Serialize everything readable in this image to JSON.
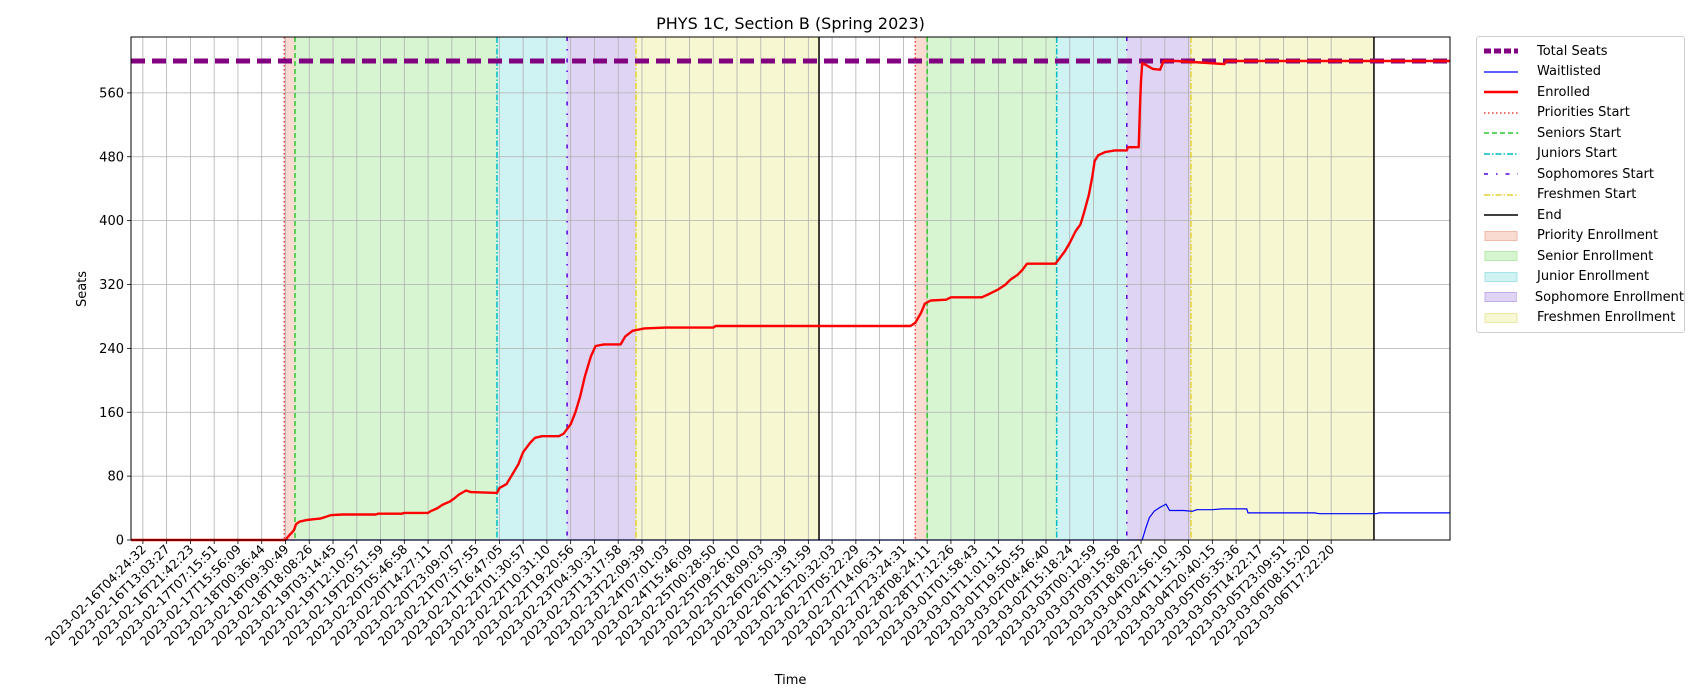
{
  "chart_data": {
    "type": "line",
    "title": "PHYS 1C, Section B (Spring 2023)",
    "xlabel": "Time",
    "ylabel": "Seats",
    "ylim": [
      0,
      630
    ],
    "yticks": [
      0,
      80,
      160,
      240,
      320,
      400,
      480,
      560
    ],
    "x_tick_labels": [
      "2023-02-16T04:24:32",
      "2023-02-16T13:03:27",
      "2023-02-16T21:42:23",
      "2023-02-17T07:15:51",
      "2023-02-17T15:56:09",
      "2023-02-18T00:36:44",
      "2023-02-18T09:30:49",
      "2023-02-18T18:08:26",
      "2023-02-19T03:14:45",
      "2023-02-19T12:10:57",
      "2023-02-19T20:51:59",
      "2023-02-20T05:46:58",
      "2023-02-20T14:27:11",
      "2023-02-20T23:09:07",
      "2023-02-21T07:57:55",
      "2023-02-21T16:47:05",
      "2023-02-22T01:30:57",
      "2023-02-22T10:31:10",
      "2023-02-22T19:20:56",
      "2023-02-23T04:30:32",
      "2023-02-23T13:17:58",
      "2023-02-23T22:09:39",
      "2023-02-24T07:01:03",
      "2023-02-24T15:46:09",
      "2023-02-25T00:28:50",
      "2023-02-25T09:26:10",
      "2023-02-25T18:09:03",
      "2023-02-26T02:50:39",
      "2023-02-26T11:51:59",
      "2023-02-26T20:32:03",
      "2023-02-27T05:22:29",
      "2023-02-27T14:06:31",
      "2023-02-27T23:24:31",
      "2023-02-28T08:24:11",
      "2023-02-28T17:12:26",
      "2023-03-01T01:58:43",
      "2023-03-01T11:01:11",
      "2023-03-01T19:50:55",
      "2023-03-02T04:46:40",
      "2023-03-02T15:18:24",
      "2023-03-03T00:12:59",
      "2023-03-03T09:15:58",
      "2023-03-03T18:08:27",
      "2023-03-04T02:56:10",
      "2023-03-04T11:51:30",
      "2023-03-04T20:40:15",
      "2023-03-05T05:35:36",
      "2023-03-05T14:22:17",
      "2023-03-05T23:09:51",
      "2023-03-06T08:15:20",
      "2023-03-06T17:22:20"
    ],
    "total_seats": 600,
    "phase_markers": [
      {
        "name": "Priorities Start",
        "x": 6.45
      },
      {
        "name": "Seniors Start",
        "x": 6.9
      },
      {
        "name": "Juniors Start",
        "x": 15.4
      },
      {
        "name": "Sophomores Start",
        "x": 18.35
      },
      {
        "name": "Freshmen Start",
        "x": 21.25
      },
      {
        "name": "End",
        "x": 28.95
      },
      {
        "name": "Priorities Start",
        "x": 33.0
      },
      {
        "name": "Seniors Start",
        "x": 33.5
      },
      {
        "name": "Juniors Start",
        "x": 38.95
      },
      {
        "name": "Sophomores Start",
        "x": 41.9
      },
      {
        "name": "Freshmen Start",
        "x": 44.6
      },
      {
        "name": "End",
        "x": 52.3
      }
    ],
    "phase_regions": [
      {
        "name": "Priority Enrollment",
        "x0": 6.45,
        "x1": 6.9
      },
      {
        "name": "Senior Enrollment",
        "x0": 6.9,
        "x1": 15.4
      },
      {
        "name": "Junior Enrollment",
        "x0": 15.4,
        "x1": 18.35
      },
      {
        "name": "Sophomore Enrollment",
        "x0": 18.35,
        "x1": 21.25
      },
      {
        "name": "Freshmen Enrollment",
        "x0": 21.25,
        "x1": 28.95
      },
      {
        "name": "Priority Enrollment",
        "x0": 33.0,
        "x1": 33.5
      },
      {
        "name": "Senior Enrollment",
        "x0": 33.5,
        "x1": 38.95
      },
      {
        "name": "Junior Enrollment",
        "x0": 38.95,
        "x1": 41.9
      },
      {
        "name": "Sophomore Enrollment",
        "x0": 41.9,
        "x1": 44.6
      },
      {
        "name": "Freshmen Enrollment",
        "x0": 44.6,
        "x1": 52.3
      }
    ],
    "series": [
      {
        "name": "Total Seats",
        "color": "#800080",
        "style": "dashed-thick",
        "points": [
          [
            0,
            600
          ],
          [
            55.5,
            600
          ]
        ]
      },
      {
        "name": "Waitlisted",
        "color": "#0000ff",
        "style": "solid-thin",
        "points": [
          [
            0,
            0
          ],
          [
            42.55,
            0
          ],
          [
            42.7,
            15
          ],
          [
            42.85,
            28
          ],
          [
            43.05,
            36
          ],
          [
            43.3,
            41
          ],
          [
            43.55,
            45
          ],
          [
            43.7,
            37
          ],
          [
            44.3,
            37
          ],
          [
            44.65,
            36
          ],
          [
            44.85,
            38
          ],
          [
            45.5,
            38
          ],
          [
            45.9,
            39
          ],
          [
            46.95,
            39
          ],
          [
            47.0,
            34
          ],
          [
            49.8,
            34
          ],
          [
            50.0,
            33
          ],
          [
            52.4,
            33
          ],
          [
            52.5,
            34
          ],
          [
            55.5,
            34
          ]
        ]
      },
      {
        "name": "Enrolled",
        "color": "#ff0000",
        "style": "solid",
        "points": [
          [
            0,
            0
          ],
          [
            6.5,
            0
          ],
          [
            6.6,
            4
          ],
          [
            6.85,
            12
          ],
          [
            6.95,
            20
          ],
          [
            7.1,
            23
          ],
          [
            7.4,
            25
          ],
          [
            7.7,
            26
          ],
          [
            8.0,
            27
          ],
          [
            8.4,
            31
          ],
          [
            8.9,
            32
          ],
          [
            10.3,
            32
          ],
          [
            10.4,
            33
          ],
          [
            11.4,
            33
          ],
          [
            11.5,
            34
          ],
          [
            12.5,
            34
          ],
          [
            12.6,
            36
          ],
          [
            12.9,
            40
          ],
          [
            13.1,
            44
          ],
          [
            13.4,
            48
          ],
          [
            13.6,
            52
          ],
          [
            13.8,
            57
          ],
          [
            14.1,
            62
          ],
          [
            14.3,
            60
          ],
          [
            15.4,
            59
          ],
          [
            15.5,
            65
          ],
          [
            15.8,
            70
          ],
          [
            16.0,
            80
          ],
          [
            16.3,
            95
          ],
          [
            16.5,
            110
          ],
          [
            16.8,
            122
          ],
          [
            17.0,
            128
          ],
          [
            17.3,
            130
          ],
          [
            18.0,
            130
          ],
          [
            18.2,
            133
          ],
          [
            18.5,
            145
          ],
          [
            18.7,
            160
          ],
          [
            18.9,
            180
          ],
          [
            19.1,
            205
          ],
          [
            19.35,
            230
          ],
          [
            19.55,
            243
          ],
          [
            19.9,
            245
          ],
          [
            20.6,
            245
          ],
          [
            20.8,
            255
          ],
          [
            21.1,
            262
          ],
          [
            21.6,
            265
          ],
          [
            22.5,
            266
          ],
          [
            24.5,
            266
          ],
          [
            24.6,
            268
          ],
          [
            29.0,
            268
          ],
          [
            32.3,
            268
          ],
          [
            32.8,
            268
          ],
          [
            33.0,
            272
          ],
          [
            33.25,
            285
          ],
          [
            33.4,
            296
          ],
          [
            33.65,
            300
          ],
          [
            34.3,
            301
          ],
          [
            34.5,
            304
          ],
          [
            35.8,
            304
          ],
          [
            36.1,
            308
          ],
          [
            36.5,
            314
          ],
          [
            36.8,
            320
          ],
          [
            37.0,
            326
          ],
          [
            37.3,
            332
          ],
          [
            37.5,
            338
          ],
          [
            37.7,
            346
          ],
          [
            38.9,
            346
          ],
          [
            39.05,
            352
          ],
          [
            39.3,
            362
          ],
          [
            39.5,
            372
          ],
          [
            39.75,
            387
          ],
          [
            39.95,
            395
          ],
          [
            40.1,
            410
          ],
          [
            40.3,
            432
          ],
          [
            40.45,
            455
          ],
          [
            40.55,
            475
          ],
          [
            40.7,
            482
          ],
          [
            41.0,
            486
          ],
          [
            41.4,
            488
          ],
          [
            41.9,
            488
          ],
          [
            41.95,
            492
          ],
          [
            42.4,
            492
          ],
          [
            42.45,
            540
          ],
          [
            42.5,
            575
          ],
          [
            42.55,
            597
          ],
          [
            42.7,
            595
          ],
          [
            43.0,
            590
          ],
          [
            43.3,
            589
          ],
          [
            43.45,
            600
          ],
          [
            44.0,
            600
          ],
          [
            45.0,
            598
          ],
          [
            45.5,
            597
          ],
          [
            46.0,
            596
          ],
          [
            46.1,
            600
          ],
          [
            55.5,
            600
          ]
        ]
      }
    ],
    "legend": {
      "placement": "outside-right",
      "entries": [
        {
          "label": "Total Seats",
          "kind": "line",
          "color": "#800080",
          "dash": "7,3",
          "width": 5
        },
        {
          "label": "Waitlisted",
          "kind": "line",
          "color": "#0000ff",
          "dash": "",
          "width": 1.2
        },
        {
          "label": "Enrolled",
          "kind": "line",
          "color": "#ff0000",
          "dash": "",
          "width": 2.4
        },
        {
          "label": "Priorities Start",
          "kind": "line",
          "color": "#ff3b2f",
          "dash": "1.5,2.5",
          "width": 1.5
        },
        {
          "label": "Seniors Start",
          "kind": "line",
          "color": "#2ec82e",
          "dash": "5,3",
          "width": 1.5
        },
        {
          "label": "Juniors Start",
          "kind": "line",
          "color": "#00bcc4",
          "dash": "6,2,1.5,2",
          "width": 1.5
        },
        {
          "label": "Sophomores Start",
          "kind": "line",
          "color": "#5500dd",
          "dash": "4,8,1.5,8",
          "width": 1.5
        },
        {
          "label": "Freshmen Start",
          "kind": "line",
          "color": "#e6d32e",
          "dash": "6,2,1.5,2",
          "width": 1.5
        },
        {
          "label": "End",
          "kind": "line",
          "color": "#000000",
          "dash": "",
          "width": 1.5
        },
        {
          "label": "Priority Enrollment",
          "kind": "patch",
          "color": "#f9dbd2",
          "edge": "#f2b9a8"
        },
        {
          "label": "Senior Enrollment",
          "kind": "patch",
          "color": "#d8f5d2",
          "edge": "#b5e8aa"
        },
        {
          "label": "Junior Enrollment",
          "kind": "patch",
          "color": "#cff2f3",
          "edge": "#a8e3e6"
        },
        {
          "label": "Sophomore Enrollment",
          "kind": "patch",
          "color": "#e0d4f5",
          "edge": "#c3aee9"
        },
        {
          "label": "Freshmen Enrollment",
          "kind": "patch",
          "color": "#f7f7d2",
          "edge": "#e8e8a8"
        }
      ]
    },
    "grid": true,
    "colors": {
      "Priority Enrollment": "#f9dbd2",
      "Senior Enrollment": "#d8f5d2",
      "Junior Enrollment": "#cff2f3",
      "Sophomore Enrollment": "#e0d4f5",
      "Freshmen Enrollment": "#f7f7d2",
      "Priorities Start": "#ff3b2f",
      "Seniors Start": "#2ec82e",
      "Juniors Start": "#00bcc4",
      "Sophomores Start": "#5500dd",
      "Freshmen Start": "#e6d32e",
      "End": "#000000"
    }
  }
}
